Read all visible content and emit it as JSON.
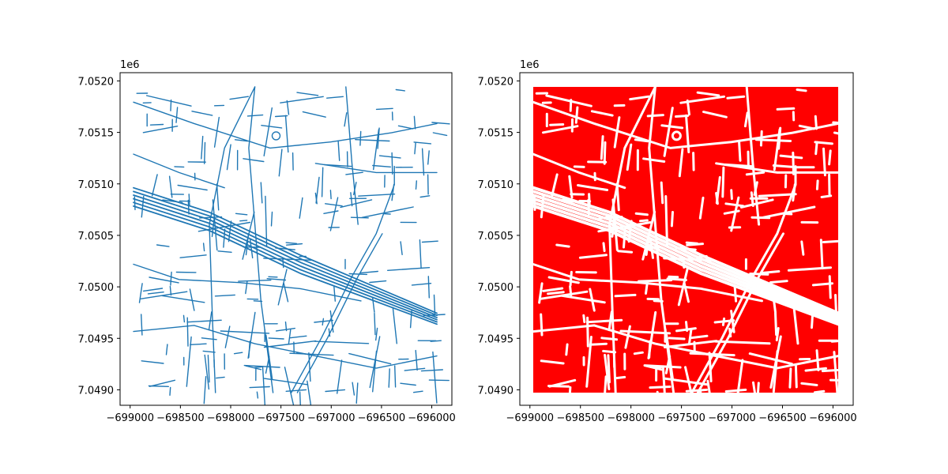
{
  "chart_data": [
    {
      "type": "map",
      "title": "",
      "style": "street network lines",
      "line_color": "#1f77b4",
      "background": "#ffffff",
      "xlim": [
        -699100,
        -695800
      ],
      "ylim": [
        7048850,
        7052080
      ],
      "xticks": [
        -699000,
        -698500,
        -698000,
        -697500,
        -697000,
        -696500,
        -696000
      ],
      "xtick_labels": [
        "−699000",
        "−698500",
        "−698000",
        "−697500",
        "−697000",
        "−696500",
        "−696000"
      ],
      "yticks": [
        7.049,
        7.0495,
        7.05,
        7.0505,
        7.051,
        7.0515,
        7.052
      ],
      "ytick_labels": [
        "7.0490",
        "7.0495",
        "7.0500",
        "7.0505",
        "7.0510",
        "7.0515",
        "7.0520"
      ],
      "y_offset_label": "1e6",
      "grid": false
    },
    {
      "type": "map",
      "title": "",
      "style": "filled blocks with white streets",
      "fill_color": "#ff0000",
      "line_color": "#ffffff",
      "background": "#ffffff",
      "xlim": [
        -699100,
        -695800
      ],
      "ylim": [
        7048850,
        7052080
      ],
      "xticks": [
        -699000,
        -698500,
        -698000,
        -697500,
        -697000,
        -696500,
        -696000
      ],
      "xtick_labels": [
        "−699000",
        "−698500",
        "−698000",
        "−697500",
        "−697000",
        "−696500",
        "−696000"
      ],
      "yticks": [
        7.049,
        7.0495,
        7.05,
        7.0505,
        7.051,
        7.0515,
        7.052
      ],
      "ytick_labels": [
        "7.0490",
        "7.0495",
        "7.0500",
        "7.0505",
        "7.0510",
        "7.0515",
        "7.0520"
      ],
      "y_offset_label": "1e6",
      "grid": false
    }
  ]
}
